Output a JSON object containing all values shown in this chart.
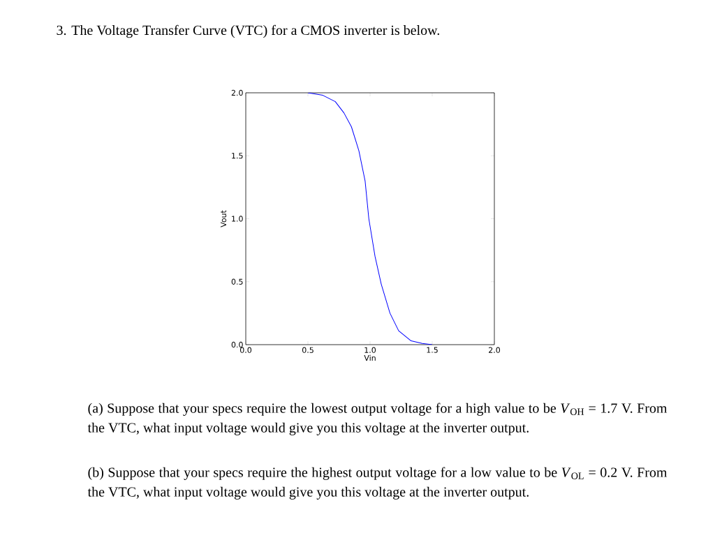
{
  "chart_data": {
    "type": "line",
    "title": "3. The Voltage Transfer Curve (VTC) for a CMOS inverter is below.",
    "xlabel": "Vin",
    "ylabel": "Vout",
    "x": [
      0.5,
      0.62,
      0.72,
      0.79,
      0.85,
      0.91,
      0.96,
      0.99,
      1.04,
      1.09,
      1.16,
      1.23,
      1.33,
      1.42,
      1.5
    ],
    "series": [
      {
        "color": "#0000ff",
        "values": [
          2.0,
          1.98,
          1.93,
          1.84,
          1.73,
          1.54,
          1.3,
          1.0,
          0.7,
          0.48,
          0.25,
          0.11,
          0.03,
          0.01,
          0.0
        ]
      }
    ],
    "xlim": [
      0,
      2
    ],
    "ylim": [
      0,
      2
    ],
    "xticks": [
      {
        "value": 0,
        "label": "0.0"
      },
      {
        "value": 0.5,
        "label": "0.5"
      },
      {
        "value": 1,
        "label": "1.0"
      },
      {
        "value": 1.5,
        "label": "1.5"
      },
      {
        "value": 2,
        "label": "2.0"
      }
    ],
    "yticks": [
      {
        "value": 0,
        "label": "0.0"
      },
      {
        "value": 0.5,
        "label": "0.5"
      },
      {
        "value": 1,
        "label": "1.0"
      },
      {
        "value": 1.5,
        "label": "1.5"
      },
      {
        "value": 2,
        "label": "2.0"
      }
    ],
    "annotations": [
      "(a) Suppose that your specs require the lowest output voltage for a high value to be *V*$_{OH}$ = 1.7 V. From the VTC, what input voltage would give you this voltage at the inverter output.",
      "(b) Suppose that your specs require the highest output voltage for a low value to be *V*$_{OL}$ = 0.2 V. From the VTC, what input voltage would give you this voltage at the inverter output."
    ]
  }
}
